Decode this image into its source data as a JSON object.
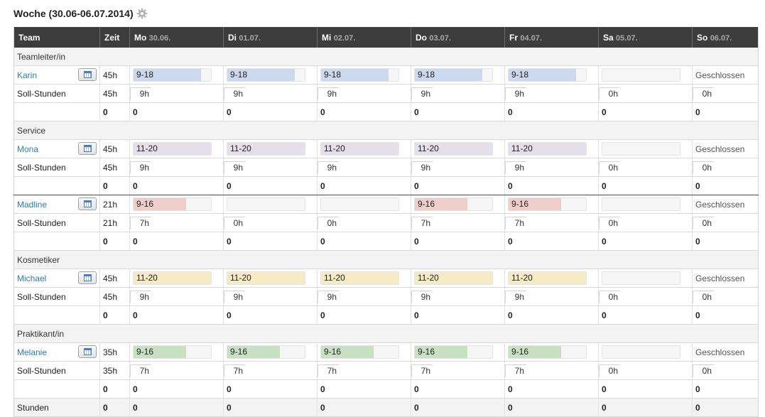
{
  "page": {
    "title": "Woche (30.06-06.07.2014)",
    "settings_icon": "gear-icon"
  },
  "colors": {
    "Teamleiter/in": "#cdd9ee",
    "Service": "#e5dfec",
    "Madline": "#f0cfcb",
    "Kosmetiker": "#f6ebc4",
    "Praktikant/in": "#c8e1c3"
  },
  "header": {
    "team": "Team",
    "zeit": "Zeit",
    "days": [
      {
        "name": "Mo",
        "date": "30.06."
      },
      {
        "name": "Di",
        "date": "01.07."
      },
      {
        "name": "Mi",
        "date": "02.07."
      },
      {
        "name": "Do",
        "date": "03.07."
      },
      {
        "name": "Fr",
        "date": "04.07."
      },
      {
        "name": "Sa",
        "date": "05.07."
      },
      {
        "name": "So",
        "date": "06.07."
      }
    ]
  },
  "sections": [
    {
      "name": "Teamleiter/in",
      "employees": [
        {
          "name": "Karin",
          "hours": "45h",
          "color": "#cdd9ee",
          "shifts": [
            {
              "text": "9-18",
              "fill": 0.87
            },
            {
              "text": "9-18",
              "fill": 0.87
            },
            {
              "text": "9-18",
              "fill": 0.87
            },
            {
              "text": "9-18",
              "fill": 0.87
            },
            {
              "text": "9-18",
              "fill": 0.87
            },
            {
              "text": "",
              "fill": 0
            },
            {
              "text": "Geschlossen",
              "closed": true
            }
          ],
          "soll_label": "Soll-Stunden",
          "soll_hours": "45h",
          "soll": [
            "9h",
            "9h",
            "9h",
            "9h",
            "9h",
            "0h",
            "0h"
          ],
          "totals": [
            "0",
            "0",
            "0",
            "0",
            "0",
            "0",
            "0",
            "0"
          ]
        }
      ]
    },
    {
      "name": "Service",
      "employees": [
        {
          "name": "Mona",
          "hours": "45h",
          "color": "#e5dfec",
          "shifts": [
            {
              "text": "11-20",
              "fill": 1.0
            },
            {
              "text": "11-20",
              "fill": 1.0
            },
            {
              "text": "11-20",
              "fill": 1.0
            },
            {
              "text": "11-20",
              "fill": 1.0
            },
            {
              "text": "11-20",
              "fill": 1.0
            },
            {
              "text": "",
              "fill": 0
            },
            {
              "text": "Geschlossen",
              "closed": true
            }
          ],
          "soll_label": "Soll-Stunden",
          "soll_hours": "45h",
          "soll": [
            "9h",
            "9h",
            "9h",
            "9h",
            "9h",
            "0h",
            "0h"
          ],
          "totals": [
            "0",
            "0",
            "0",
            "0",
            "0",
            "0",
            "0",
            "0"
          ]
        },
        {
          "name": "Madline",
          "hours": "21h",
          "color": "#f0cfcb",
          "shifts": [
            {
              "text": "9-16",
              "fill": 0.68
            },
            {
              "text": "",
              "fill": 0
            },
            {
              "text": "",
              "fill": 0
            },
            {
              "text": "9-16",
              "fill": 0.68
            },
            {
              "text": "9-16",
              "fill": 0.68
            },
            {
              "text": "",
              "fill": 0
            },
            {
              "text": "Geschlossen",
              "closed": true
            }
          ],
          "soll_label": "Soll-Stunden",
          "soll_hours": "21h",
          "soll": [
            "7h",
            "0h",
            "0h",
            "7h",
            "7h",
            "0h",
            "0h"
          ],
          "totals": [
            "0",
            "0",
            "0",
            "0",
            "0",
            "0",
            "0",
            "0"
          ]
        }
      ]
    },
    {
      "name": "Kosmetiker",
      "employees": [
        {
          "name": "Michael",
          "hours": "45h",
          "color": "#f6ebc4",
          "shifts": [
            {
              "text": "11-20",
              "fill": 1.0
            },
            {
              "text": "11-20",
              "fill": 1.0
            },
            {
              "text": "11-20",
              "fill": 1.0
            },
            {
              "text": "11-20",
              "fill": 1.0
            },
            {
              "text": "11-20",
              "fill": 1.0
            },
            {
              "text": "",
              "fill": 0
            },
            {
              "text": "Geschlossen",
              "closed": true
            }
          ],
          "soll_label": "Soll-Stunden",
          "soll_hours": "45h",
          "soll": [
            "9h",
            "9h",
            "9h",
            "9h",
            "9h",
            "0h",
            "0h"
          ],
          "totals": [
            "0",
            "0",
            "0",
            "0",
            "0",
            "0",
            "0",
            "0"
          ]
        }
      ]
    },
    {
      "name": "Praktikant/in",
      "employees": [
        {
          "name": "Melanie",
          "hours": "35h",
          "color": "#c8e1c3",
          "shifts": [
            {
              "text": "9-16",
              "fill": 0.68
            },
            {
              "text": "9-16",
              "fill": 0.68
            },
            {
              "text": "9-16",
              "fill": 0.68
            },
            {
              "text": "9-16",
              "fill": 0.68
            },
            {
              "text": "9-16",
              "fill": 0.68
            },
            {
              "text": "",
              "fill": 0
            },
            {
              "text": "Geschlossen",
              "closed": true
            }
          ],
          "soll_label": "Soll-Stunden",
          "soll_hours": "35h",
          "soll": [
            "7h",
            "7h",
            "7h",
            "7h",
            "7h",
            "0h",
            "0h"
          ],
          "totals": [
            "0",
            "0",
            "0",
            "0",
            "0",
            "0",
            "0",
            "0"
          ]
        }
      ]
    }
  ],
  "footer": {
    "label": "Stunden",
    "values": [
      "0",
      "0",
      "0",
      "0",
      "0",
      "0",
      "0",
      "0"
    ]
  }
}
